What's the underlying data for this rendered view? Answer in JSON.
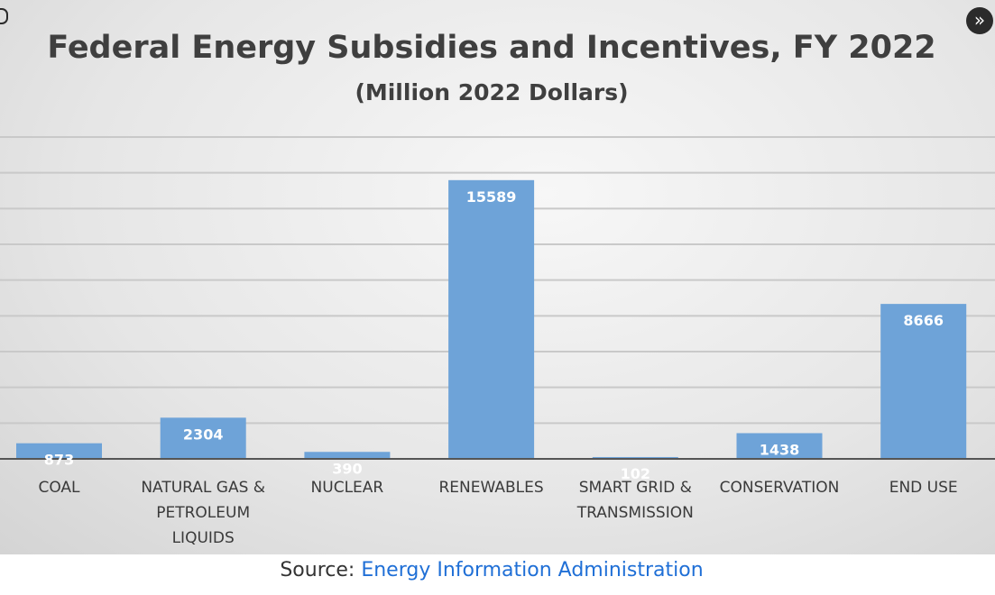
{
  "chart_data": {
    "type": "bar",
    "title": "Federal Energy Subsidies and Incentives, FY 2022",
    "subtitle": "(Million 2022 Dollars)",
    "categories": [
      [
        "COAL"
      ],
      [
        "NATURAL GAS &",
        "PETROLEUM",
        "LIQUIDS"
      ],
      [
        "NUCLEAR"
      ],
      [
        "RENEWABLES"
      ],
      [
        "SMART GRID &",
        "TRANSMISSION"
      ],
      [
        "CONSERVATION"
      ],
      [
        "END USE"
      ]
    ],
    "values": [
      873,
      2304,
      390,
      15589,
      102,
      1438,
      8666
    ],
    "data_labels": [
      "873",
      "2304",
      "390",
      "15589",
      "102",
      "1438",
      "8666"
    ],
    "ylim": [
      0,
      18000
    ],
    "gridlines": true,
    "bar_color": "#6ea3d8",
    "xlabel": "",
    "ylabel": ""
  },
  "source": {
    "prefix": "Source: ",
    "link_text": "Energy Information Administration",
    "link_color": "#1f6fd6"
  },
  "controls": {
    "expand_icon": "»"
  }
}
